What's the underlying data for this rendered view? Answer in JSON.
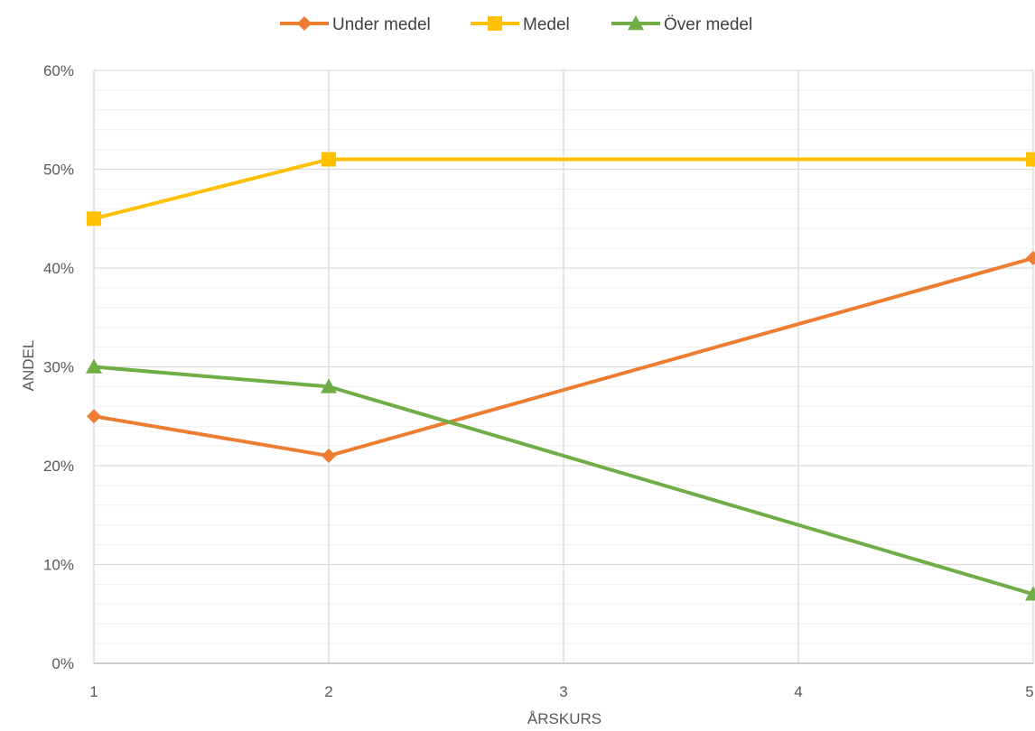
{
  "chart_data": {
    "type": "line",
    "x": [
      1,
      2,
      5
    ],
    "series": [
      {
        "name": "Under medel",
        "values": [
          0.25,
          0.21,
          0.41
        ],
        "color": "#ED7D31",
        "marker": "diamond"
      },
      {
        "name": "Medel",
        "values": [
          0.45,
          0.51,
          0.51
        ],
        "color": "#FFC000",
        "marker": "square"
      },
      {
        "name": "Över medel",
        "values": [
          0.3,
          0.28,
          0.07
        ],
        "color": "#70AD47",
        "marker": "triangle"
      }
    ],
    "x_ticks": [
      "1",
      "2",
      "3",
      "4",
      "5"
    ],
    "y_ticks": [
      "0%",
      "10%",
      "20%",
      "30%",
      "40%",
      "50%",
      "60%"
    ],
    "xlabel": "ÅRSKURS",
    "ylabel": "ANDEL",
    "xlim": [
      1,
      5
    ],
    "ylim": [
      0,
      0.6
    ],
    "grid": true,
    "legend_position": "top"
  }
}
